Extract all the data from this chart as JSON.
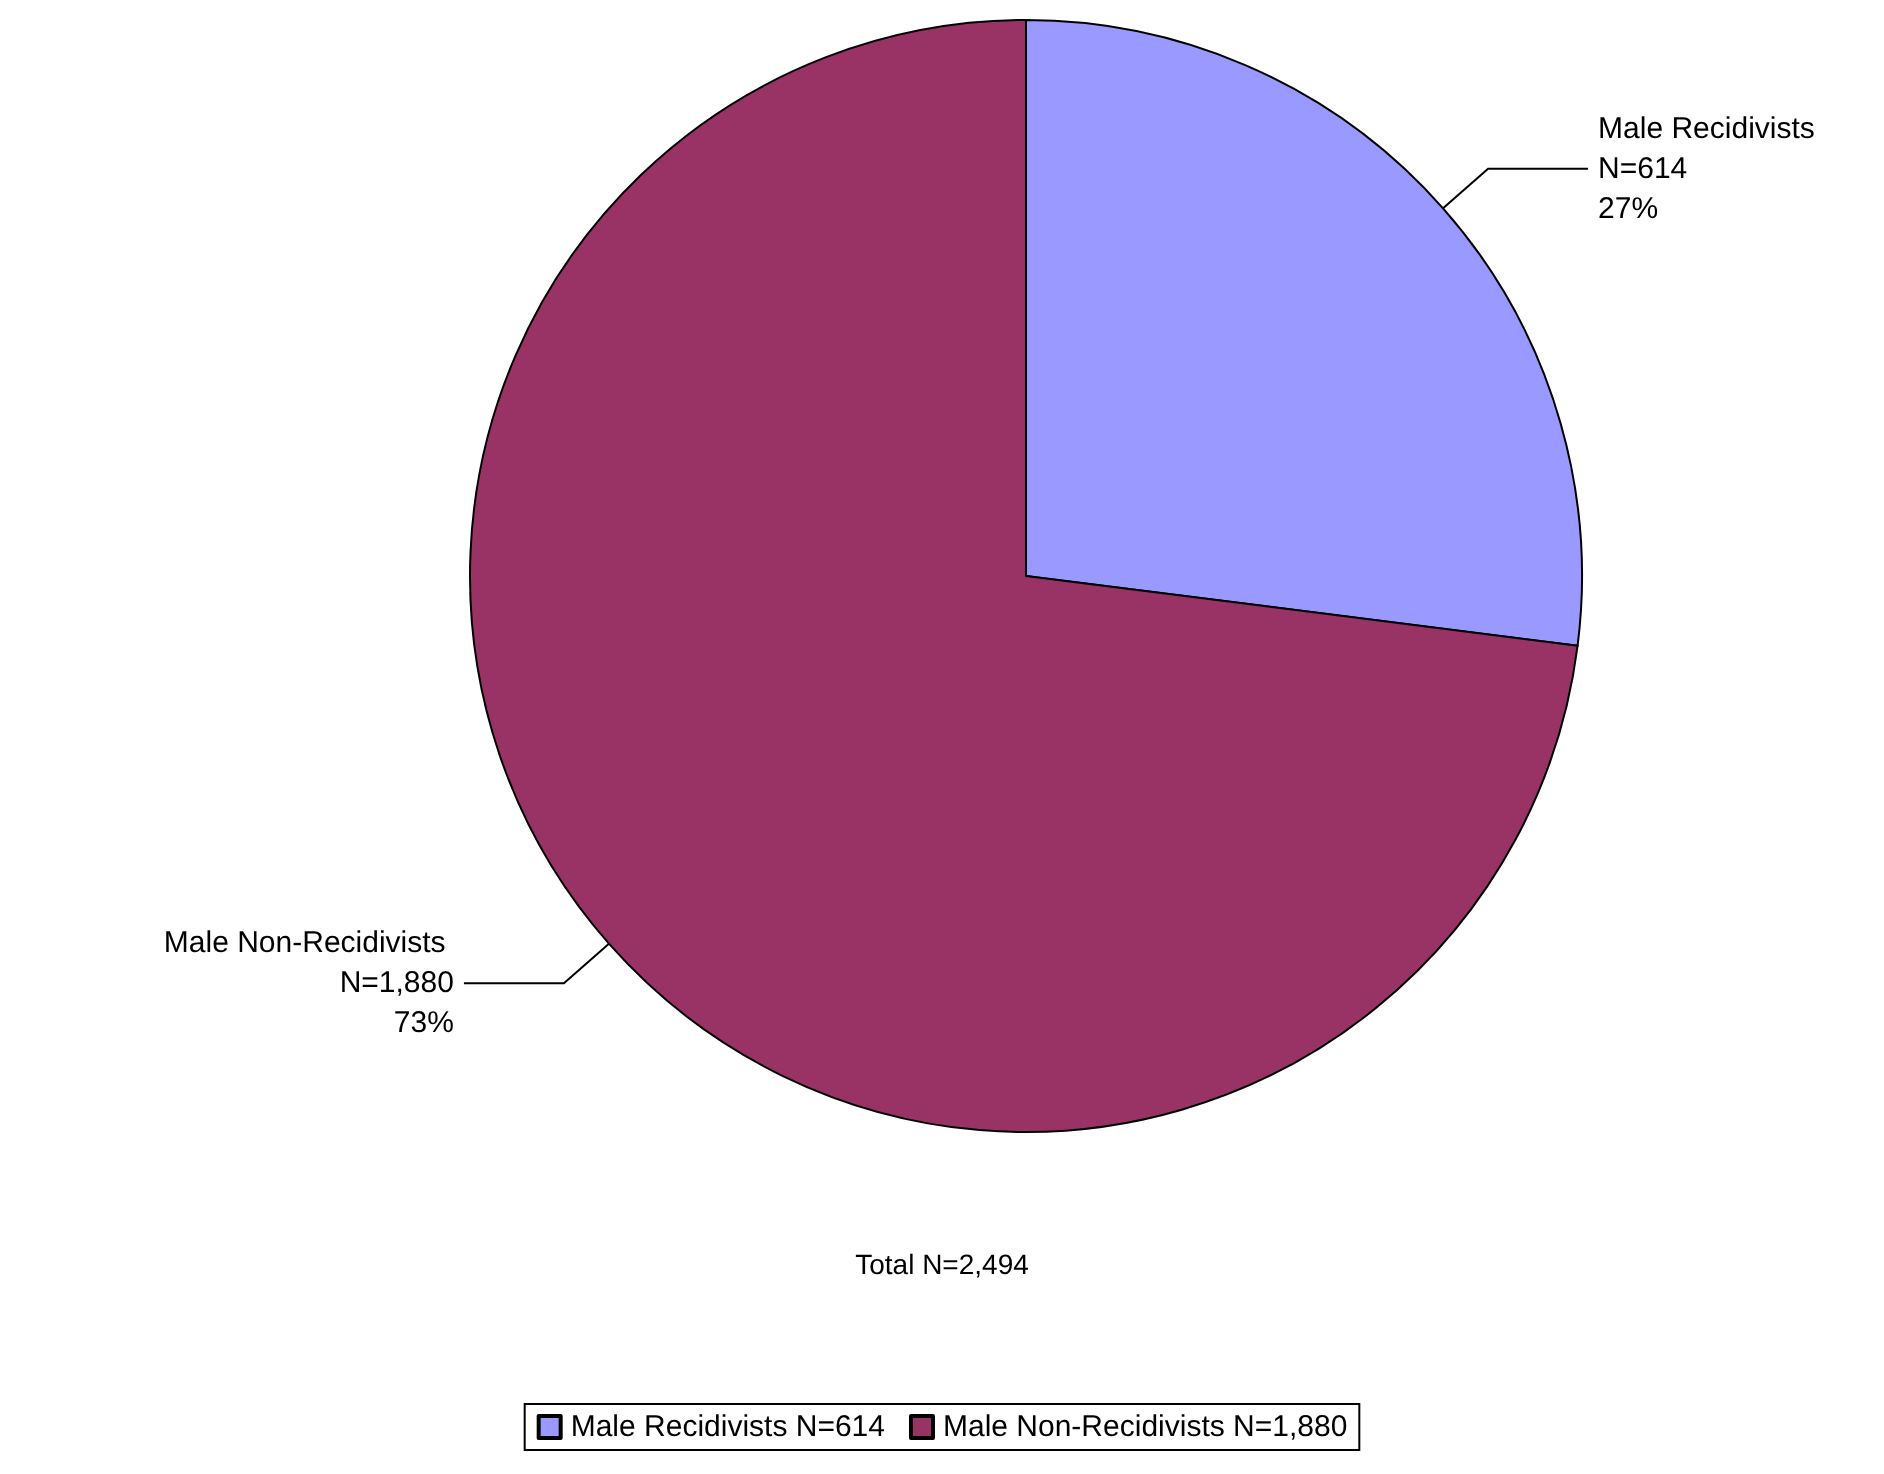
{
  "chart_data": {
    "type": "pie",
    "categories": [
      "Male Recidivists N=614",
      "Male Non-Recidivists N=1,880"
    ],
    "values": [
      27,
      73
    ],
    "value_labels": [
      "27%",
      "73%"
    ],
    "colors": [
      "#9999ff",
      "#993366"
    ],
    "annotations": [
      "Total N=2,494"
    ],
    "legend": "bottom"
  }
}
